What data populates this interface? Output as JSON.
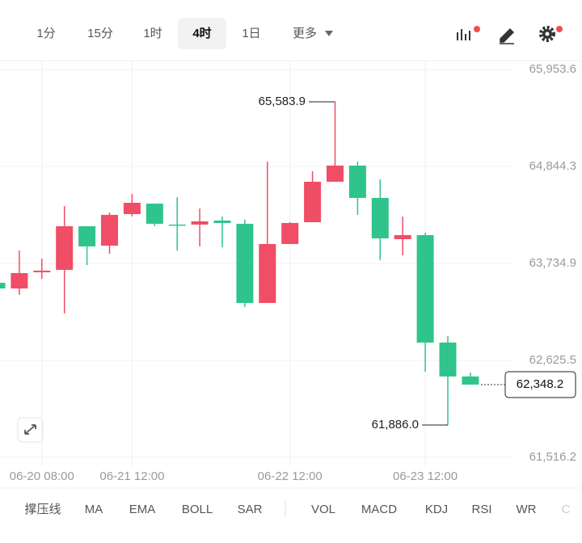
{
  "toolbar": {
    "intervals": [
      "1分",
      "15分",
      "1时",
      "4时",
      "1日",
      "更多"
    ],
    "active": 3
  },
  "chart_data": {
    "type": "candlestick",
    "categories": [
      null,
      null,
      "06-20 08:00",
      null,
      null,
      null,
      "06-21 12:00",
      null,
      null,
      null,
      null,
      null,
      null,
      "06-22 12:00",
      null,
      null,
      null,
      null,
      null,
      "06-23 12:00",
      null,
      null
    ],
    "values": [
      [
        63513,
        63520,
        63440,
        63448
      ],
      [
        63448,
        63883,
        63375,
        63624
      ],
      [
        63633,
        63790,
        63559,
        63652
      ],
      [
        63661,
        64391,
        63162,
        64160
      ],
      [
        64160,
        64160,
        63716,
        63929
      ],
      [
        63938,
        64317,
        63846,
        64290
      ],
      [
        64299,
        64530,
        64271,
        64428
      ],
      [
        64419,
        64419,
        64160,
        64188
      ],
      [
        64179,
        64493,
        63883,
        64169
      ],
      [
        64179,
        64363,
        63929,
        64216
      ],
      [
        64225,
        64271,
        63920,
        64197
      ],
      [
        64188,
        64234,
        63236,
        63282
      ],
      [
        63282,
        64900,
        63282,
        63957
      ],
      [
        63957,
        64206,
        63957,
        64197
      ],
      [
        64206,
        64789,
        64206,
        64669
      ],
      [
        64669,
        65583.9,
        64669,
        64854
      ],
      [
        64854,
        64900,
        64290,
        64484
      ],
      [
        64484,
        64696,
        63772,
        64021
      ],
      [
        64012,
        64271,
        63827,
        64058
      ],
      [
        64058,
        64086,
        62496,
        62829
      ],
      [
        62829,
        62903,
        61886.0,
        62441
      ],
      [
        62441,
        62487,
        62348.2,
        62348.2
      ]
    ],
    "up_color": "#f04d66",
    "down_color": "#2ec48c",
    "ylim": [
      61414,
      66055
    ],
    "yticks": [
      {
        "value": 65953.6,
        "label": "65,953.6"
      },
      {
        "value": 64844.3,
        "label": "64,844.3"
      },
      {
        "value": 63734.9,
        "label": "63,734.9"
      },
      {
        "value": 62625.5,
        "label": "62,625.5"
      },
      {
        "value": 61516.2,
        "label": "61,516.2"
      }
    ],
    "grid": true,
    "high_label": {
      "value": 65583.9,
      "label": "65,583.9"
    },
    "low_label": {
      "value": 61886.0,
      "label": "61,886.0"
    },
    "last_price": {
      "value": 62348.2,
      "label": "62,348.2"
    }
  },
  "indicators": [
    "撑压线",
    "MA",
    "EMA",
    "BOLL",
    "SAR",
    "VOL",
    "MACD",
    "KDJ",
    "RSI",
    "WR",
    "C"
  ]
}
